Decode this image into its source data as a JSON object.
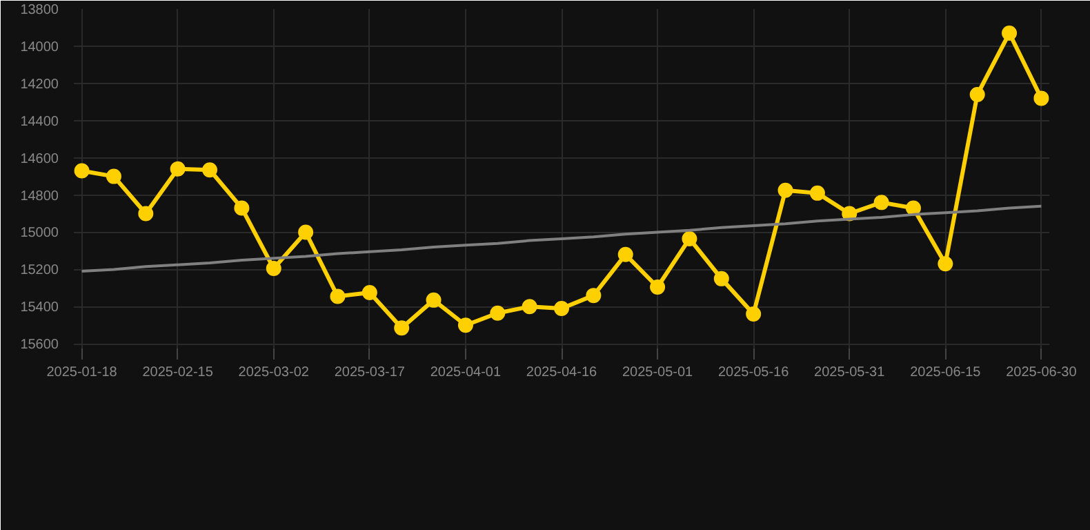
{
  "chart_data": {
    "type": "line",
    "categories": [
      "2025-01-18",
      null,
      null,
      "2025-02-15",
      null,
      null,
      "2025-03-02",
      null,
      null,
      "2025-03-17",
      null,
      null,
      "2025-04-01",
      null,
      null,
      "2025-04-16",
      null,
      null,
      "2025-05-01",
      null,
      null,
      "2025-05-16",
      null,
      null,
      "2025-05-31",
      null,
      null,
      "2025-06-15",
      null,
      null,
      "2025-06-30"
    ],
    "series": [
      {
        "color": "#ffd000",
        "marker": "circle",
        "values": [
          14670,
          14700,
          14900,
          14660,
          14665,
          14870,
          15195,
          15000,
          15345,
          15325,
          15515,
          15365,
          15500,
          15435,
          15400,
          15410,
          15340,
          15120,
          15295,
          15035,
          15250,
          15440,
          14775,
          14790,
          14900,
          14840,
          14870,
          15170,
          14260,
          13930,
          14280
        ]
      },
      {
        "color": "#808080",
        "marker": "none",
        "values": [
          15210,
          15200,
          15185,
          15175,
          15165,
          15150,
          15140,
          15130,
          15115,
          15105,
          15095,
          15080,
          15070,
          15060,
          15045,
          15035,
          15025,
          15010,
          15000,
          14990,
          14975,
          14965,
          14955,
          14940,
          14930,
          14920,
          14905,
          14895,
          14885,
          14870,
          14860
        ]
      }
    ],
    "ylim": [
      15640,
      13800
    ],
    "yticks": [
      13800,
      14000,
      14200,
      14400,
      14600,
      14800,
      15000,
      15200,
      15400,
      15600
    ],
    "grid": true,
    "line_style": "solid"
  }
}
